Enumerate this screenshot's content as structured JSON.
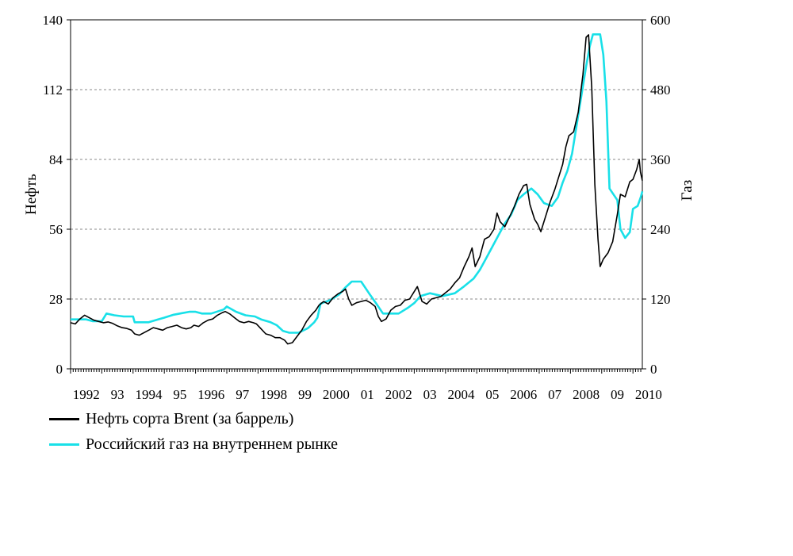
{
  "chart_data": {
    "type": "line",
    "ylabel_left": "Нефть",
    "ylabel_right": "Газ",
    "ylim_left": [
      0,
      140
    ],
    "ylim_right": [
      0,
      600
    ],
    "yticks_left": [
      "0",
      "28",
      "56",
      "84",
      "112",
      "140"
    ],
    "yticks_right": [
      "0",
      "120",
      "240",
      "360",
      "480",
      "600"
    ],
    "xlim": [
      1992.0,
      2010.3
    ],
    "xticks": [
      {
        "year": 1992,
        "label": "1992"
      },
      {
        "year": 1993,
        "label": "93"
      },
      {
        "year": 1994,
        "label": "1994"
      },
      {
        "year": 1995,
        "label": "95"
      },
      {
        "year": 1996,
        "label": "1996"
      },
      {
        "year": 1997,
        "label": "97"
      },
      {
        "year": 1998,
        "label": "1998"
      },
      {
        "year": 1999,
        "label": "99"
      },
      {
        "year": 2000,
        "label": "2000"
      },
      {
        "year": 2001,
        "label": "01"
      },
      {
        "year": 2002,
        "label": "2002"
      },
      {
        "year": 2003,
        "label": "03"
      },
      {
        "year": 2004,
        "label": "2004"
      },
      {
        "year": 2005,
        "label": "05"
      },
      {
        "year": 2006,
        "label": "2006"
      },
      {
        "year": 2007,
        "label": "07"
      },
      {
        "year": 2008,
        "label": "2008"
      },
      {
        "year": 2009,
        "label": "09"
      },
      {
        "year": 2010,
        "label": "2010"
      }
    ],
    "grid": "horizontal dashed",
    "legend_position": "bottom-left",
    "series": [
      {
        "name": "Нефть сорта Brent (за баррель)",
        "axis": "left",
        "color": "#000000",
        "points": [
          [
            1992.0,
            18.5
          ],
          [
            1992.15,
            18.0
          ],
          [
            1992.3,
            20.0
          ],
          [
            1992.45,
            21.5
          ],
          [
            1992.6,
            20.5
          ],
          [
            1992.75,
            19.5
          ],
          [
            1992.9,
            19.0
          ],
          [
            1993.05,
            18.5
          ],
          [
            1993.2,
            18.8
          ],
          [
            1993.35,
            18.2
          ],
          [
            1993.5,
            17.2
          ],
          [
            1993.65,
            16.5
          ],
          [
            1993.8,
            16.2
          ],
          [
            1993.95,
            15.5
          ],
          [
            1994.05,
            14.0
          ],
          [
            1994.2,
            13.5
          ],
          [
            1994.35,
            14.5
          ],
          [
            1994.5,
            15.5
          ],
          [
            1994.65,
            16.5
          ],
          [
            1994.8,
            16.0
          ],
          [
            1994.95,
            15.5
          ],
          [
            1995.1,
            16.5
          ],
          [
            1995.25,
            17.0
          ],
          [
            1995.4,
            17.5
          ],
          [
            1995.55,
            16.5
          ],
          [
            1995.7,
            16.0
          ],
          [
            1995.85,
            16.5
          ],
          [
            1995.95,
            17.5
          ],
          [
            1996.1,
            17.0
          ],
          [
            1996.25,
            18.5
          ],
          [
            1996.4,
            19.5
          ],
          [
            1996.55,
            20.0
          ],
          [
            1996.7,
            21.5
          ],
          [
            1996.85,
            22.5
          ],
          [
            1996.95,
            23.0
          ],
          [
            1997.1,
            22.0
          ],
          [
            1997.25,
            20.5
          ],
          [
            1997.4,
            19.0
          ],
          [
            1997.55,
            18.5
          ],
          [
            1997.7,
            19.0
          ],
          [
            1997.85,
            18.5
          ],
          [
            1997.95,
            18.0
          ],
          [
            1998.1,
            16.0
          ],
          [
            1998.25,
            14.0
          ],
          [
            1998.4,
            13.5
          ],
          [
            1998.55,
            12.5
          ],
          [
            1998.7,
            12.5
          ],
          [
            1998.85,
            11.5
          ],
          [
            1998.95,
            10.0
          ],
          [
            1999.1,
            10.5
          ],
          [
            1999.25,
            13.0
          ],
          [
            1999.4,
            15.5
          ],
          [
            1999.55,
            19.0
          ],
          [
            1999.7,
            21.5
          ],
          [
            1999.85,
            23.5
          ],
          [
            1999.95,
            25.5
          ],
          [
            2000.1,
            27.0
          ],
          [
            2000.25,
            26.0
          ],
          [
            2000.4,
            28.5
          ],
          [
            2000.55,
            30.0
          ],
          [
            2000.7,
            31.0
          ],
          [
            2000.8,
            32.0
          ],
          [
            2000.9,
            28.0
          ],
          [
            2001.0,
            25.5
          ],
          [
            2001.15,
            26.5
          ],
          [
            2001.3,
            27.0
          ],
          [
            2001.45,
            27.5
          ],
          [
            2001.6,
            26.5
          ],
          [
            2001.75,
            25.0
          ],
          [
            2001.85,
            21.0
          ],
          [
            2001.95,
            19.0
          ],
          [
            2002.1,
            20.0
          ],
          [
            2002.25,
            23.5
          ],
          [
            2002.4,
            25.0
          ],
          [
            2002.55,
            25.5
          ],
          [
            2002.7,
            27.5
          ],
          [
            2002.85,
            28.0
          ],
          [
            2003.0,
            31.0
          ],
          [
            2003.1,
            33.0
          ],
          [
            2003.25,
            27.0
          ],
          [
            2003.4,
            26.0
          ],
          [
            2003.55,
            28.0
          ],
          [
            2003.7,
            28.5
          ],
          [
            2003.85,
            29.0
          ],
          [
            2004.0,
            30.5
          ],
          [
            2004.15,
            32.0
          ],
          [
            2004.3,
            34.5
          ],
          [
            2004.45,
            36.5
          ],
          [
            2004.6,
            41.0
          ],
          [
            2004.75,
            45.0
          ],
          [
            2004.85,
            48.5
          ],
          [
            2004.95,
            41.0
          ],
          [
            2005.1,
            45.0
          ],
          [
            2005.25,
            52.0
          ],
          [
            2005.4,
            53.0
          ],
          [
            2005.55,
            56.0
          ],
          [
            2005.65,
            62.5
          ],
          [
            2005.75,
            59.0
          ],
          [
            2005.9,
            57.0
          ],
          [
            2006.05,
            61.0
          ],
          [
            2006.2,
            65.0
          ],
          [
            2006.35,
            70.0
          ],
          [
            2006.5,
            73.5
          ],
          [
            2006.6,
            74.0
          ],
          [
            2006.7,
            66.0
          ],
          [
            2006.85,
            60.0
          ],
          [
            2006.95,
            58.0
          ],
          [
            2007.05,
            55.0
          ],
          [
            2007.2,
            61.0
          ],
          [
            2007.35,
            67.0
          ],
          [
            2007.5,
            72.0
          ],
          [
            2007.6,
            76.0
          ],
          [
            2007.75,
            82.0
          ],
          [
            2007.85,
            89.0
          ],
          [
            2007.95,
            93.5
          ],
          [
            2008.1,
            95.0
          ],
          [
            2008.25,
            103.0
          ],
          [
            2008.4,
            118.0
          ],
          [
            2008.5,
            133.0
          ],
          [
            2008.58,
            134.0
          ],
          [
            2008.68,
            113.0
          ],
          [
            2008.78,
            74.0
          ],
          [
            2008.88,
            52.0
          ],
          [
            2008.95,
            41.0
          ],
          [
            2009.05,
            44.0
          ],
          [
            2009.2,
            46.5
          ],
          [
            2009.35,
            51.0
          ],
          [
            2009.5,
            62.0
          ],
          [
            2009.6,
            70.0
          ],
          [
            2009.75,
            69.0
          ],
          [
            2009.9,
            75.0
          ],
          [
            2010.0,
            76.0
          ],
          [
            2010.12,
            80.0
          ],
          [
            2010.2,
            84.0
          ],
          [
            2010.24,
            79.0
          ],
          [
            2010.3,
            75.5
          ]
        ]
      },
      {
        "name": "Российский газ на внутреннем рынке",
        "axis": "right",
        "color": "#19e0e8",
        "points": [
          [
            1992.0,
            85
          ],
          [
            1992.5,
            85
          ],
          [
            1992.7,
            82
          ],
          [
            1993.0,
            82
          ],
          [
            1993.15,
            95
          ],
          [
            1993.4,
            92
          ],
          [
            1993.7,
            90
          ],
          [
            1994.0,
            90
          ],
          [
            1994.05,
            80
          ],
          [
            1994.5,
            80
          ],
          [
            1994.8,
            85
          ],
          [
            1995.0,
            88
          ],
          [
            1995.3,
            93
          ],
          [
            1995.5,
            95
          ],
          [
            1995.8,
            98
          ],
          [
            1996.0,
            98
          ],
          [
            1996.2,
            95
          ],
          [
            1996.5,
            95
          ],
          [
            1996.9,
            102
          ],
          [
            1997.0,
            107
          ],
          [
            1997.3,
            98
          ],
          [
            1997.6,
            92
          ],
          [
            1997.9,
            90
          ],
          [
            1998.1,
            85
          ],
          [
            1998.4,
            80
          ],
          [
            1998.6,
            75
          ],
          [
            1998.8,
            65
          ],
          [
            1999.0,
            62
          ],
          [
            1999.3,
            62
          ],
          [
            1999.6,
            70
          ],
          [
            1999.8,
            80
          ],
          [
            1999.9,
            88
          ],
          [
            2000.0,
            112
          ],
          [
            2000.3,
            118
          ],
          [
            2000.6,
            128
          ],
          [
            2000.8,
            140
          ],
          [
            2001.0,
            150
          ],
          [
            2001.3,
            150
          ],
          [
            2001.55,
            130
          ],
          [
            2001.75,
            115
          ],
          [
            2002.0,
            95
          ],
          [
            2002.5,
            95
          ],
          [
            2002.8,
            105
          ],
          [
            2003.0,
            113
          ],
          [
            2003.2,
            125
          ],
          [
            2003.5,
            130
          ],
          [
            2003.9,
            125
          ],
          [
            2004.3,
            130
          ],
          [
            2004.6,
            142
          ],
          [
            2004.9,
            155
          ],
          [
            2005.1,
            170
          ],
          [
            2005.3,
            190
          ],
          [
            2005.5,
            210
          ],
          [
            2005.7,
            230
          ],
          [
            2005.9,
            250
          ],
          [
            2006.1,
            265
          ],
          [
            2006.3,
            290
          ],
          [
            2006.5,
            300
          ],
          [
            2006.75,
            310
          ],
          [
            2006.95,
            300
          ],
          [
            2007.15,
            285
          ],
          [
            2007.4,
            280
          ],
          [
            2007.6,
            295
          ],
          [
            2007.75,
            320
          ],
          [
            2007.9,
            340
          ],
          [
            2008.05,
            370
          ],
          [
            2008.2,
            420
          ],
          [
            2008.35,
            470
          ],
          [
            2008.5,
            520
          ],
          [
            2008.62,
            555
          ],
          [
            2008.72,
            575
          ],
          [
            2008.95,
            575
          ],
          [
            2009.05,
            540
          ],
          [
            2009.15,
            460
          ],
          [
            2009.25,
            310
          ],
          [
            2009.5,
            290
          ],
          [
            2009.6,
            240
          ],
          [
            2009.75,
            225
          ],
          [
            2009.9,
            235
          ],
          [
            2010.0,
            275
          ],
          [
            2010.15,
            280
          ],
          [
            2010.25,
            295
          ],
          [
            2010.3,
            305
          ]
        ]
      }
    ]
  }
}
